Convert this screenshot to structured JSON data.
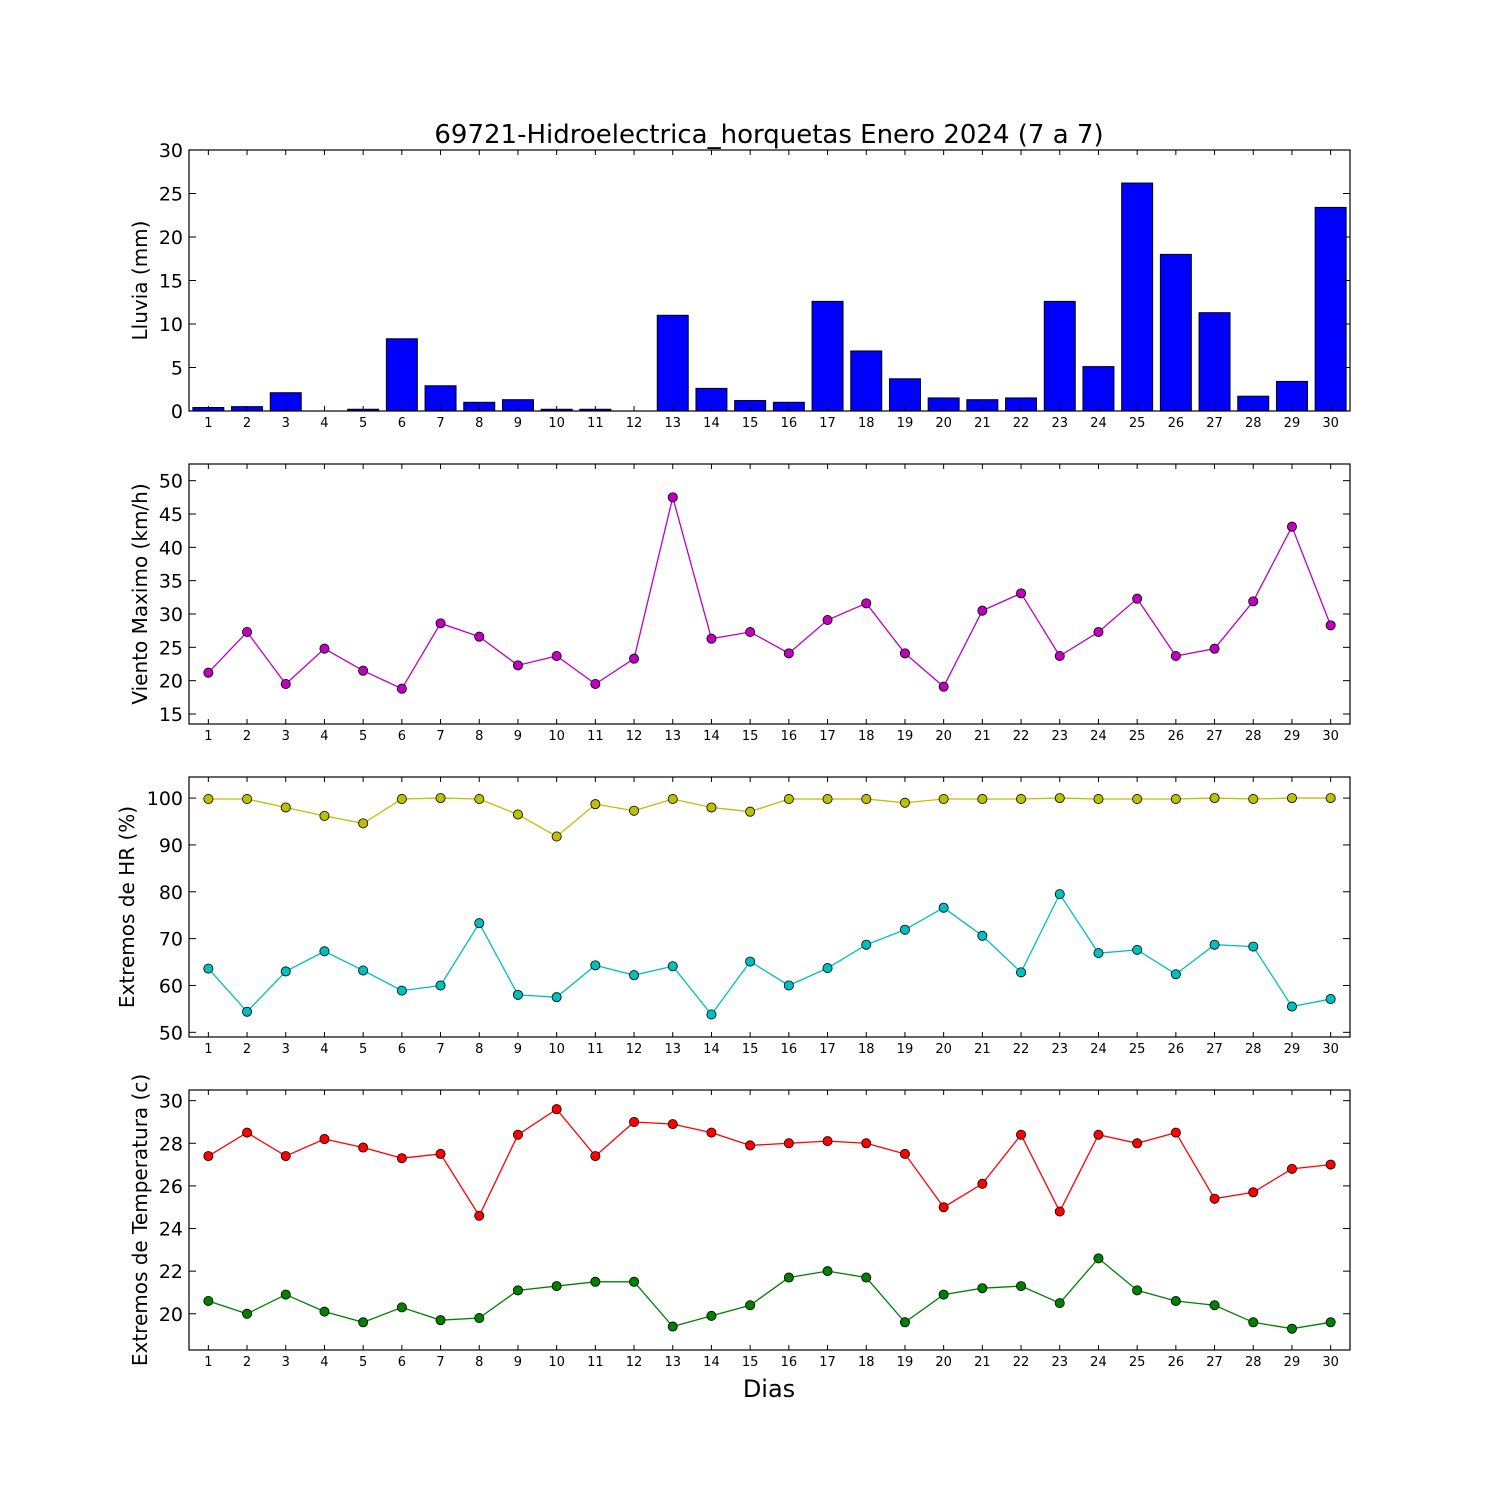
{
  "figure": {
    "title": "69721-Hidroelectrica_horquetas Enero 2024  (7 a 7)",
    "xlabel": "Dias"
  },
  "chart_data": [
    {
      "type": "bar",
      "ylabel": "Lluvia (mm)",
      "ylim": [
        0,
        30
      ],
      "yticks": [
        0,
        5,
        10,
        15,
        20,
        25,
        30
      ],
      "categories": [
        1,
        2,
        3,
        4,
        5,
        6,
        7,
        8,
        9,
        10,
        11,
        12,
        13,
        14,
        15,
        16,
        17,
        18,
        19,
        20,
        21,
        22,
        23,
        24,
        25,
        26,
        27,
        28,
        29,
        30
      ],
      "series": [
        {
          "color": "#0000ff",
          "values": [
            0.4,
            0.5,
            2.1,
            0,
            0.2,
            8.3,
            2.9,
            1.0,
            1.3,
            0.2,
            0.2,
            0,
            11.0,
            2.6,
            1.2,
            1.0,
            12.6,
            6.9,
            3.7,
            1.5,
            1.3,
            1.5,
            12.6,
            5.1,
            26.2,
            18.0,
            11.3,
            1.7,
            3.4,
            23.4
          ]
        }
      ],
      "grid": false
    },
    {
      "type": "line",
      "ylabel": "Viento Maximo (km/h)",
      "ylim": [
        13.5,
        52.5
      ],
      "yticks": [
        15,
        20,
        25,
        30,
        35,
        40,
        45,
        50
      ],
      "categories": [
        1,
        2,
        3,
        4,
        5,
        6,
        7,
        8,
        9,
        10,
        11,
        12,
        13,
        14,
        15,
        16,
        17,
        18,
        19,
        20,
        21,
        22,
        23,
        24,
        25,
        26,
        27,
        28,
        29,
        30
      ],
      "series": [
        {
          "color": "#bf00bf",
          "values": [
            21.2,
            27.3,
            19.5,
            24.8,
            21.5,
            18.8,
            28.6,
            26.6,
            22.3,
            23.7,
            19.5,
            23.3,
            47.5,
            26.3,
            27.3,
            24.1,
            29.1,
            31.6,
            24.1,
            19.1,
            30.5,
            33.1,
            23.7,
            27.3,
            32.3,
            23.7,
            24.8,
            31.9,
            43.1,
            28.3
          ]
        }
      ],
      "grid": false
    },
    {
      "type": "line",
      "ylabel": "Extremos de HR (%)",
      "ylim": [
        49,
        104.5
      ],
      "yticks": [
        50,
        60,
        70,
        80,
        90,
        100
      ],
      "categories": [
        1,
        2,
        3,
        4,
        5,
        6,
        7,
        8,
        9,
        10,
        11,
        12,
        13,
        14,
        15,
        16,
        17,
        18,
        19,
        20,
        21,
        22,
        23,
        24,
        25,
        26,
        27,
        28,
        29,
        30
      ],
      "series": [
        {
          "color": "#bfbf00",
          "values": [
            99.8,
            99.8,
            98.0,
            96.2,
            94.6,
            99.8,
            100.0,
            99.8,
            96.5,
            91.8,
            98.7,
            97.3,
            99.8,
            98.0,
            97.1,
            99.8,
            99.8,
            99.8,
            99.0,
            99.8,
            99.8,
            99.8,
            100.0,
            99.8,
            99.8,
            99.8,
            100.0,
            99.8,
            100.0,
            100.0
          ]
        },
        {
          "color": "#00bfbf",
          "values": [
            63.6,
            54.4,
            63.0,
            67.3,
            63.2,
            58.9,
            60.0,
            73.3,
            58.0,
            57.5,
            64.3,
            62.2,
            64.1,
            53.8,
            65.1,
            60.0,
            63.7,
            68.7,
            71.9,
            76.6,
            70.6,
            62.8,
            79.5,
            66.9,
            67.6,
            62.4,
            68.7,
            68.3,
            55.5,
            57.1
          ]
        }
      ],
      "grid": false
    },
    {
      "type": "line",
      "ylabel": "Extremos de Temperatura (c)",
      "ylim": [
        18.3,
        30.5
      ],
      "yticks": [
        20,
        22,
        24,
        26,
        28,
        30
      ],
      "categories": [
        1,
        2,
        3,
        4,
        5,
        6,
        7,
        8,
        9,
        10,
        11,
        12,
        13,
        14,
        15,
        16,
        17,
        18,
        19,
        20,
        21,
        22,
        23,
        24,
        25,
        26,
        27,
        28,
        29,
        30
      ],
      "series": [
        {
          "color": "#ff0000",
          "values": [
            27.4,
            28.5,
            27.4,
            28.2,
            27.8,
            27.3,
            27.5,
            24.6,
            28.4,
            29.6,
            27.4,
            29.0,
            28.9,
            28.5,
            27.9,
            28.0,
            28.1,
            28.0,
            27.5,
            25.0,
            26.1,
            28.4,
            24.8,
            28.4,
            28.0,
            28.5,
            25.4,
            25.7,
            26.8,
            27.0
          ]
        },
        {
          "color": "#008000",
          "values": [
            20.6,
            20.0,
            20.9,
            20.1,
            19.6,
            20.3,
            19.7,
            19.8,
            21.1,
            21.3,
            21.5,
            21.5,
            19.4,
            19.9,
            20.4,
            21.7,
            22.0,
            21.7,
            19.6,
            20.9,
            21.2,
            21.3,
            20.5,
            22.6,
            21.1,
            20.6,
            20.4,
            19.6,
            19.3,
            19.6
          ]
        }
      ],
      "grid": false
    }
  ]
}
